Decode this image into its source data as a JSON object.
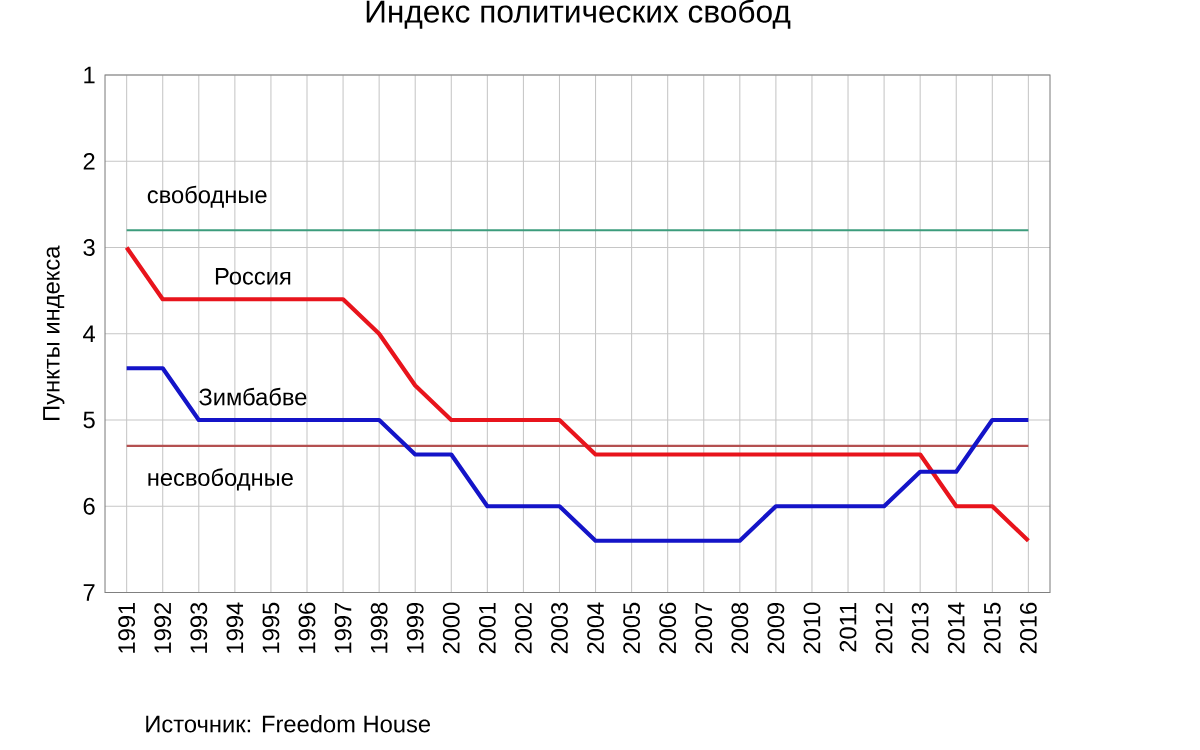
{
  "chart_data": {
    "type": "line",
    "title": "Индекс политических свобод",
    "ylabel": "Пункты индекса",
    "categories": [
      "1991",
      "1992",
      "1993",
      "1994",
      "1995",
      "1996",
      "1997",
      "1998",
      "1999",
      "2000",
      "2001",
      "2002",
      "2003",
      "2004",
      "2005",
      "2006",
      "2007",
      "2008",
      "2009",
      "2010",
      "2011",
      "2012",
      "2013",
      "2014",
      "2015",
      "2016"
    ],
    "series": [
      {
        "name": "Россия",
        "color": "#e8141c",
        "values": [
          3.0,
          3.6,
          3.6,
          3.6,
          3.6,
          3.6,
          3.6,
          4.0,
          4.6,
          5.0,
          5.0,
          5.0,
          5.0,
          5.4,
          5.4,
          5.4,
          5.4,
          5.4,
          5.4,
          5.4,
          5.4,
          5.4,
          5.4,
          6.0,
          6.0,
          6.4
        ]
      },
      {
        "name": "Зимбабве",
        "color": "#1414c8",
        "values": [
          4.4,
          4.4,
          5.0,
          5.0,
          5.0,
          5.0,
          5.0,
          5.0,
          5.4,
          5.4,
          6.0,
          6.0,
          6.0,
          6.4,
          6.4,
          6.4,
          6.4,
          6.4,
          6.0,
          6.0,
          6.0,
          6.0,
          5.6,
          5.6,
          5.0,
          5.0
        ]
      }
    ],
    "ylim": [
      7,
      1
    ],
    "yticks": [
      1,
      2,
      3,
      4,
      5,
      6,
      7
    ],
    "grid": true,
    "ref_lines": [
      {
        "axis": "y",
        "value": 2.8,
        "label": "свободные",
        "color": "#3c9c7c"
      },
      {
        "axis": "y",
        "value": 5.3,
        "label": "несвободные",
        "color": "#b45050"
      }
    ],
    "annotations": [
      "Источник: Freedom House"
    ]
  }
}
